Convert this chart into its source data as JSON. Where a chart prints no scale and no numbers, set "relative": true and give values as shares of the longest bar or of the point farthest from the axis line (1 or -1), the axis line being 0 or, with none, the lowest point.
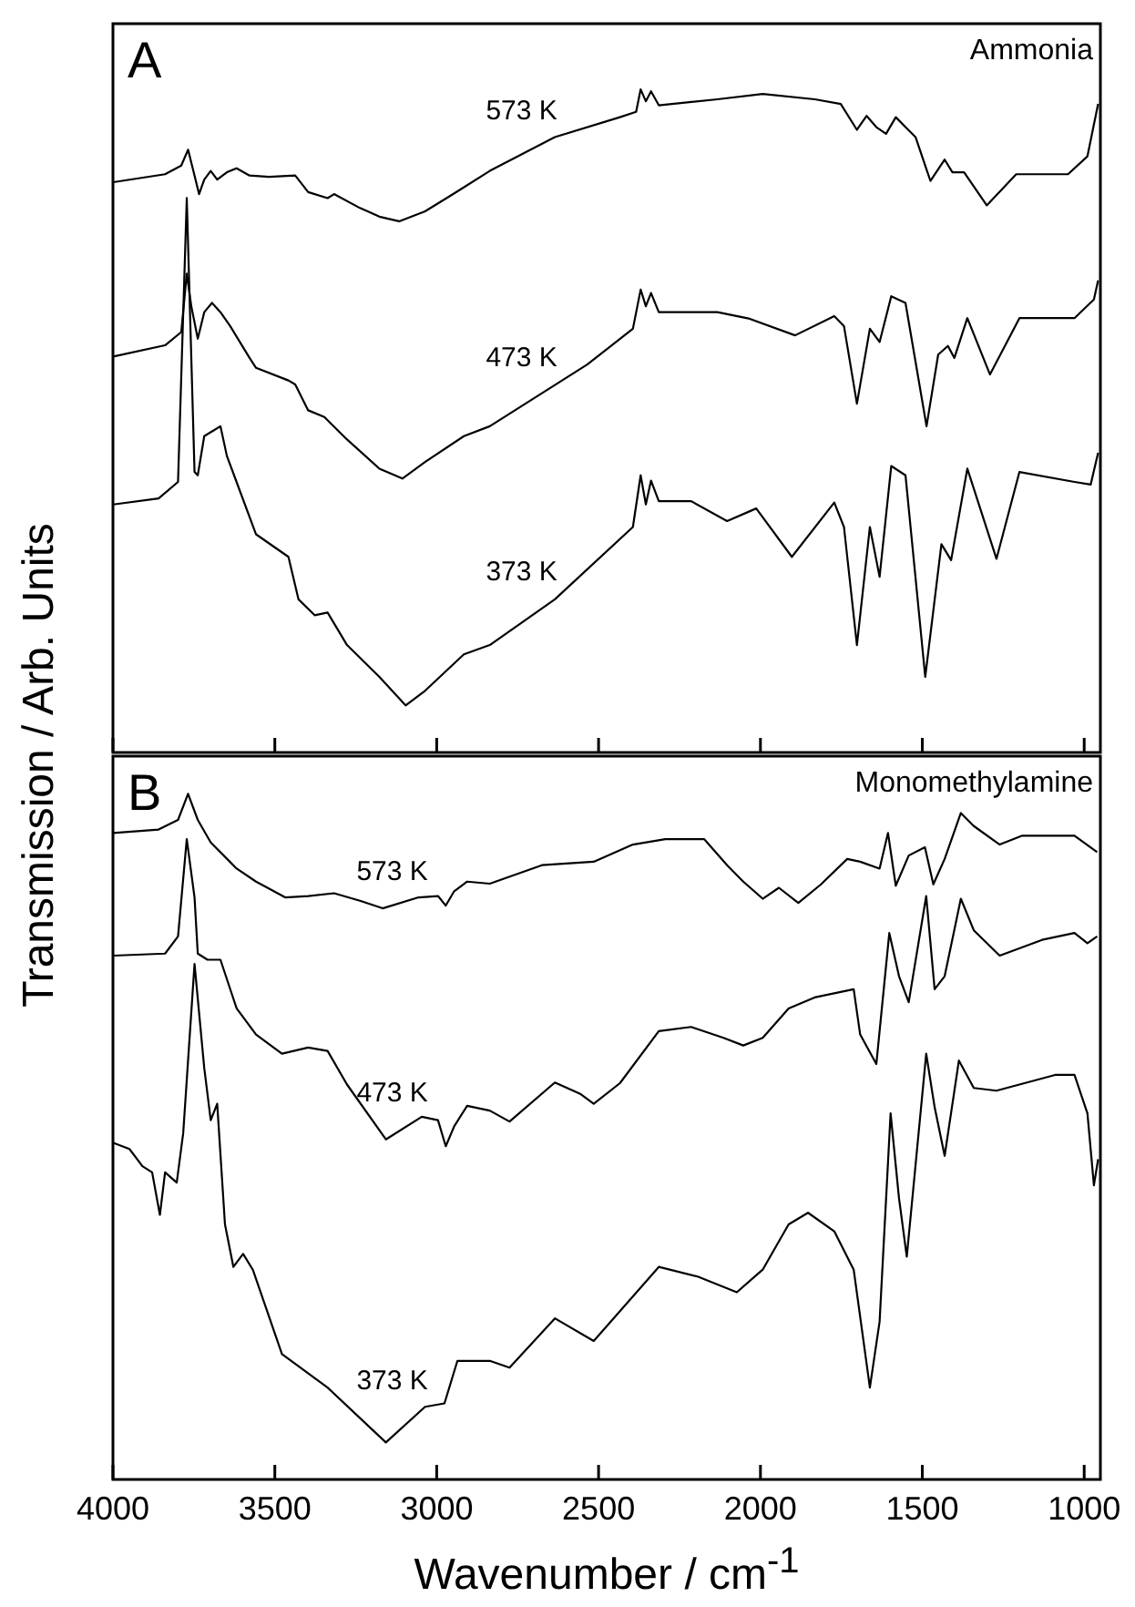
{
  "chart_data": [
    {
      "type": "line",
      "title": "Ammonia",
      "annotations": [
        "A"
      ],
      "ylabel": "Transmission / Arb. Units",
      "relative": true,
      "xlim": [
        4000,
        950
      ],
      "xticks": [
        4000,
        3500,
        3000,
        2500,
        2000,
        1500,
        1000
      ],
      "tick_labels": false,
      "grid": false,
      "legend": false,
      "marker": "none",
      "line_style": "solid",
      "series": [
        {
          "name": "573 K",
          "color": "#000000",
          "x": [
            3999,
            3839,
            3789,
            3768,
            3748,
            3734,
            3718,
            3698,
            3678,
            3648,
            3618,
            3578,
            3518,
            3437,
            3397,
            3337,
            3317,
            3237,
            3177,
            3116,
            3036,
            2956,
            2836,
            2635,
            2434,
            2384,
            2370,
            2354,
            2338,
            2314,
            2133,
            1993,
            1832,
            1752,
            1702,
            1672,
            1642,
            1612,
            1582,
            1552,
            1521,
            1475,
            1431,
            1407,
            1371,
            1301,
            1210,
            1050,
            990,
            957
          ],
          "values": [
            0.86,
            0.872,
            0.885,
            0.909,
            0.87,
            0.842,
            0.864,
            0.877,
            0.864,
            0.875,
            0.881,
            0.87,
            0.868,
            0.87,
            0.845,
            0.836,
            0.842,
            0.821,
            0.808,
            0.801,
            0.816,
            0.84,
            0.877,
            0.928,
            0.958,
            0.966,
            1.0,
            0.982,
            0.997,
            0.976,
            0.985,
            0.993,
            0.985,
            0.978,
            0.939,
            0.96,
            0.943,
            0.933,
            0.958,
            0.943,
            0.928,
            0.862,
            0.894,
            0.875,
            0.875,
            0.825,
            0.872,
            0.872,
            0.899,
            0.978
          ]
        },
        {
          "name": "473 K",
          "color": "#000000",
          "x": [
            3999,
            3839,
            3789,
            3772,
            3758,
            3738,
            3718,
            3694,
            3668,
            3638,
            3578,
            3558,
            3458,
            3437,
            3397,
            3347,
            3277,
            3177,
            3106,
            3036,
            2916,
            2836,
            2535,
            2394,
            2370,
            2354,
            2338,
            2314,
            2133,
            2033,
            1893,
            1772,
            1742,
            1702,
            1662,
            1632,
            1596,
            1552,
            1487,
            1451,
            1421,
            1401,
            1361,
            1291,
            1200,
            1030,
            970,
            957
          ],
          "values": [
            0.597,
            0.614,
            0.634,
            0.722,
            0.673,
            0.624,
            0.664,
            0.678,
            0.664,
            0.643,
            0.595,
            0.58,
            0.561,
            0.555,
            0.516,
            0.506,
            0.472,
            0.428,
            0.413,
            0.438,
            0.477,
            0.492,
            0.585,
            0.639,
            0.698,
            0.673,
            0.693,
            0.664,
            0.664,
            0.654,
            0.629,
            0.658,
            0.643,
            0.526,
            0.639,
            0.619,
            0.688,
            0.678,
            0.492,
            0.6,
            0.613,
            0.595,
            0.655,
            0.57,
            0.655,
            0.655,
            0.683,
            0.712
          ]
        },
        {
          "name": "373 K",
          "color": "#000000",
          "x": [
            3999,
            3859,
            3799,
            3772,
            3748,
            3738,
            3718,
            3688,
            3668,
            3648,
            3558,
            3458,
            3427,
            3377,
            3337,
            3277,
            3177,
            3096,
            3036,
            2916,
            2836,
            2635,
            2394,
            2370,
            2354,
            2338,
            2314,
            2214,
            2103,
            2013,
            1903,
            1772,
            1742,
            1702,
            1662,
            1632,
            1596,
            1552,
            1491,
            1441,
            1411,
            1361,
            1271,
            1200,
            1030,
            980,
            957
          ],
          "values": [
            0.374,
            0.383,
            0.408,
            0.836,
            0.423,
            0.418,
            0.477,
            0.486,
            0.492,
            0.447,
            0.329,
            0.295,
            0.231,
            0.207,
            0.211,
            0.162,
            0.114,
            0.071,
            0.093,
            0.148,
            0.162,
            0.231,
            0.34,
            0.418,
            0.374,
            0.41,
            0.379,
            0.379,
            0.349,
            0.368,
            0.295,
            0.377,
            0.34,
            0.162,
            0.34,
            0.265,
            0.432,
            0.418,
            0.114,
            0.314,
            0.29,
            0.428,
            0.292,
            0.423,
            0.408,
            0.404,
            0.452
          ]
        }
      ]
    },
    {
      "type": "line",
      "title": "Monomethylamine",
      "annotations": [
        "B"
      ],
      "xlabel": "Wavenumber  / cm$^{-1}$",
      "relative": true,
      "xlim": [
        4000,
        950
      ],
      "xticks": [
        4000,
        3500,
        3000,
        2500,
        2000,
        1500,
        1000
      ],
      "tick_labels": "x",
      "grid": false,
      "legend": false,
      "marker": "none",
      "line_style": "solid",
      "series": [
        {
          "name": "573 K",
          "color": "#000000",
          "x": [
            3999,
            3859,
            3799,
            3768,
            3738,
            3698,
            3618,
            3558,
            3468,
            3397,
            3317,
            3237,
            3167,
            3056,
            2996,
            2972,
            2946,
            2906,
            2836,
            2675,
            2515,
            2394,
            2294,
            2174,
            2103,
            2053,
            1993,
            1943,
            1883,
            1813,
            1732,
            1692,
            1632,
            1606,
            1582,
            1542,
            1492,
            1466,
            1431,
            1381,
            1341,
            1261,
            1191,
            1030,
            960
          ],
          "values": [
            0.943,
            0.948,
            0.962,
            1.0,
            0.962,
            0.929,
            0.891,
            0.872,
            0.849,
            0.851,
            0.855,
            0.844,
            0.833,
            0.849,
            0.851,
            0.837,
            0.858,
            0.872,
            0.869,
            0.896,
            0.901,
            0.926,
            0.934,
            0.934,
            0.896,
            0.872,
            0.847,
            0.863,
            0.841,
            0.868,
            0.905,
            0.901,
            0.891,
            0.943,
            0.866,
            0.91,
            0.922,
            0.868,
            0.905,
            0.972,
            0.953,
            0.926,
            0.939,
            0.939,
            0.915
          ]
        },
        {
          "name": "473 K",
          "color": "#000000",
          "x": [
            3999,
            3839,
            3799,
            3772,
            3748,
            3738,
            3708,
            3668,
            3618,
            3558,
            3478,
            3397,
            3337,
            3277,
            3157,
            3046,
            2996,
            2972,
            2946,
            2906,
            2836,
            2775,
            2635,
            2555,
            2515,
            2434,
            2314,
            2214,
            2114,
            2053,
            1993,
            1913,
            1833,
            1712,
            1692,
            1642,
            1602,
            1572,
            1542,
            1488,
            1462,
            1431,
            1381,
            1341,
            1261,
            1130,
            1030,
            990,
            960
          ],
          "values": [
            0.764,
            0.767,
            0.792,
            0.934,
            0.849,
            0.767,
            0.758,
            0.758,
            0.687,
            0.649,
            0.621,
            0.63,
            0.625,
            0.576,
            0.496,
            0.529,
            0.524,
            0.486,
            0.515,
            0.545,
            0.538,
            0.522,
            0.579,
            0.562,
            0.548,
            0.578,
            0.654,
            0.66,
            0.644,
            0.633,
            0.644,
            0.687,
            0.703,
            0.715,
            0.649,
            0.606,
            0.797,
            0.734,
            0.696,
            0.851,
            0.715,
            0.734,
            0.847,
            0.801,
            0.764,
            0.787,
            0.797,
            0.782,
            0.792
          ]
        },
        {
          "name": "373 K",
          "color": "#000000",
          "x": [
            3999,
            3949,
            3909,
            3879,
            3855,
            3839,
            3803,
            3783,
            3748,
            3718,
            3698,
            3678,
            3654,
            3628,
            3598,
            3568,
            3478,
            3337,
            3157,
            3036,
            2976,
            2936,
            2836,
            2775,
            2635,
            2515,
            2314,
            2194,
            2073,
            1993,
            1913,
            1853,
            1772,
            1712,
            1662,
            1632,
            1598,
            1572,
            1548,
            1488,
            1462,
            1431,
            1387,
            1341,
            1271,
            1090,
            1030,
            990,
            970,
            957
          ],
          "values": [
            0.491,
            0.482,
            0.457,
            0.448,
            0.386,
            0.448,
            0.433,
            0.505,
            0.752,
            0.6,
            0.524,
            0.548,
            0.372,
            0.31,
            0.329,
            0.306,
            0.183,
            0.134,
            0.054,
            0.106,
            0.111,
            0.173,
            0.173,
            0.163,
            0.235,
            0.202,
            0.31,
            0.296,
            0.273,
            0.306,
            0.372,
            0.389,
            0.362,
            0.306,
            0.134,
            0.23,
            0.534,
            0.41,
            0.325,
            0.621,
            0.543,
            0.472,
            0.611,
            0.571,
            0.567,
            0.59,
            0.59,
            0.534,
            0.429,
            0.467
          ]
        }
      ]
    }
  ]
}
